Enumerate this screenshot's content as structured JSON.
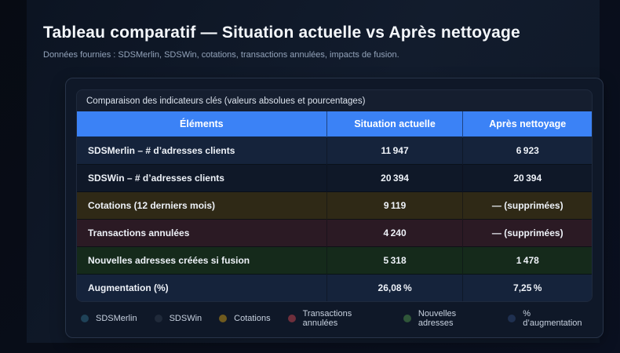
{
  "page": {
    "title": "Tableau comparatif — Situation actuelle vs Après nettoyage",
    "subtitle": "Données fournies : SDSMerlin, SDSWin, cotations, transactions annulées, impacts de fusion."
  },
  "card": {
    "caption": "Comparaison des indicateurs clés (valeurs absolues et pourcentages)"
  },
  "colors": {
    "header_bg": "#3b82f6",
    "row_blue": "#15233b",
    "row_plain": "#0f1828",
    "row_olive": "#2f2916",
    "row_maroon": "#2b1a24",
    "row_green": "#152a1b"
  },
  "table": {
    "headers": [
      "Éléments",
      "Situation actuelle",
      "Après nettoyage"
    ],
    "rows": [
      {
        "label": "SDSMerlin – # d’adresses clients",
        "current": "11 947",
        "after": "6 923",
        "bg": "#15233b"
      },
      {
        "label": "SDSWin – # d’adresses clients",
        "current": "20 394",
        "after": "20 394",
        "bg": "#0f1828"
      },
      {
        "label": "Cotations (12 derniers mois)",
        "current": "9 119",
        "after": "— (supprimées)",
        "bg": "#2f2916"
      },
      {
        "label": "Transactions annulées",
        "current": "4 240",
        "after": "— (supprimées)",
        "bg": "#2b1a24"
      },
      {
        "label": "Nouvelles adresses créées si fusion",
        "current": "5 318",
        "after": "1 478",
        "bg": "#152a1b"
      },
      {
        "label": "Augmentation (%)",
        "current": "26,08 %",
        "after": "7,25 %",
        "bg": "#15233b"
      }
    ]
  },
  "legend": [
    {
      "label": "SDSMerlin",
      "color": "#1f4258"
    },
    {
      "label": "SDSWin",
      "color": "#202a3a"
    },
    {
      "label": "Cotations",
      "color": "#6f5a1e"
    },
    {
      "label": "Transactions annulées",
      "color": "#6f2f3c"
    },
    {
      "label": "Nouvelles adresses",
      "color": "#2f5639"
    },
    {
      "label": "% d’augmentation",
      "color": "#1f3050"
    }
  ]
}
